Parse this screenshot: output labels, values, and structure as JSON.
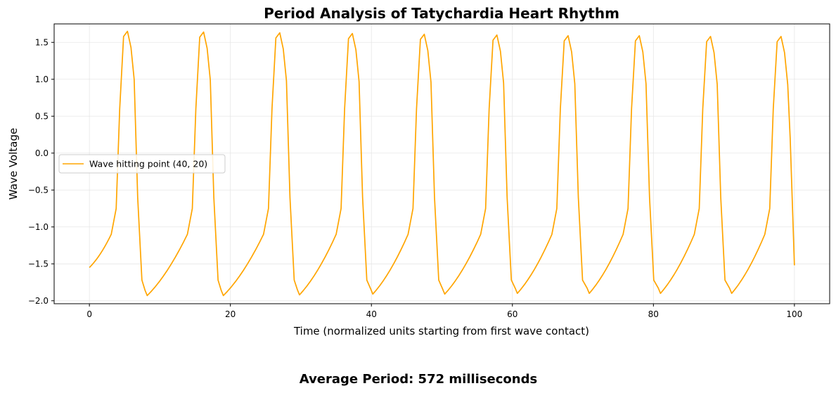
{
  "chart_data": {
    "type": "line",
    "title": "Period Analysis of Tatychardia Heart Rhythm",
    "xlabel": "Time (normalized units starting from first wave contact)",
    "ylabel": "Wave Voltage",
    "xlim": [
      -5,
      105
    ],
    "ylim": [
      -2.04,
      1.75
    ],
    "xticks": [
      0,
      20,
      40,
      60,
      80,
      100
    ],
    "yticks": [
      -2.0,
      -1.5,
      -1.0,
      -0.5,
      0.0,
      0.5,
      1.0,
      1.5
    ],
    "ytick_labels": [
      "−2.0",
      "−1.5",
      "−1.0",
      "−0.5",
      "0.0",
      "0.5",
      "1.0",
      "1.5"
    ],
    "grid": true,
    "legend_position": "center-left",
    "series": [
      {
        "name": "Wave hitting point (40, 20)",
        "color": "#ffa500",
        "period": 10.0,
        "start_value": -1.55,
        "end_value": -1.52,
        "x": [
          0,
          3,
          4,
          4.5,
          5,
          5.5,
          6,
          6.5,
          7,
          7.5,
          7.8,
          8.2,
          13.5
        ],
        "y": [
          -1.55,
          -1.12,
          -0.7,
          0.6,
          1.6,
          1.65,
          1.45,
          1.0,
          -0.5,
          -1.75,
          -1.85,
          -1.93,
          -1.2
        ],
        "peaks": [
          {
            "x": 5.4,
            "y": 1.65
          },
          {
            "x": 16.2,
            "y": 1.64
          },
          {
            "x": 27.0,
            "y": 1.63
          },
          {
            "x": 37.3,
            "y": 1.62
          },
          {
            "x": 47.5,
            "y": 1.61
          },
          {
            "x": 57.8,
            "y": 1.6
          },
          {
            "x": 67.9,
            "y": 1.59
          },
          {
            "x": 78.0,
            "y": 1.59
          },
          {
            "x": 88.1,
            "y": 1.58
          },
          {
            "x": 98.1,
            "y": 1.58
          }
        ],
        "troughs": [
          {
            "x": 8.2,
            "y": -1.93
          },
          {
            "x": 19.0,
            "y": -1.93
          },
          {
            "x": 29.8,
            "y": -1.92
          },
          {
            "x": 40.2,
            "y": -1.91
          },
          {
            "x": 50.4,
            "y": -1.91
          },
          {
            "x": 60.7,
            "y": -1.9
          },
          {
            "x": 70.9,
            "y": -1.9
          },
          {
            "x": 81.0,
            "y": -1.9
          },
          {
            "x": 91.1,
            "y": -1.9
          }
        ]
      }
    ]
  },
  "footer": {
    "text": "Average Period: 572 milliseconds"
  }
}
